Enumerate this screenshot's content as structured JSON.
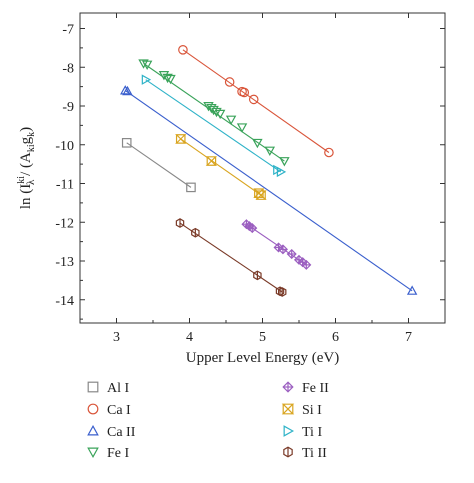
{
  "chart_data": {
    "type": "scatter",
    "xlabel": "Upper Level Energy (eV)",
    "ylabel": "ln (I^ki_λ / (A_ki g_k))",
    "ylabel_parts": {
      "prefix": "ln (I",
      "sup": "ki",
      "sub_lambda": "λ",
      "mid": " / (A",
      "sub_ki": "ki",
      "g": "g",
      "sub_k": "k",
      "suffix": ")"
    },
    "xlim": [
      2.5,
      7.5
    ],
    "ylim": [
      -14.6,
      -6.6
    ],
    "xticks": [
      3,
      4,
      5,
      6,
      7
    ],
    "xtick_labels": [
      "3",
      "4",
      "5",
      "6",
      "7"
    ],
    "yticks": [
      -7,
      -8,
      -9,
      -10,
      -11,
      -12,
      -13,
      -14
    ],
    "ytick_labels": [
      "-7",
      "-8",
      "-9",
      "-10",
      "-11",
      "-12",
      "-13",
      "-14"
    ],
    "grid": false,
    "legend_placement": "bottom",
    "series": [
      {
        "name": "Al I",
        "marker": "square",
        "color": "#888888",
        "points": [
          [
            3.14,
            -9.95
          ],
          [
            4.02,
            -11.1
          ]
        ],
        "fit": [
          [
            3.14,
            -9.95
          ],
          [
            4.02,
            -11.1
          ]
        ]
      },
      {
        "name": "Ca I",
        "marker": "circle",
        "color": "#d9553a",
        "points": [
          [
            3.91,
            -7.55
          ],
          [
            4.55,
            -8.38
          ],
          [
            4.72,
            -8.63
          ],
          [
            4.75,
            -8.65
          ],
          [
            4.88,
            -8.83
          ],
          [
            5.91,
            -10.2
          ]
        ],
        "fit": [
          [
            3.91,
            -7.55
          ],
          [
            5.91,
            -10.2
          ]
        ]
      },
      {
        "name": "Ca II",
        "marker": "triangle-up",
        "color": "#3a5fcd",
        "points": [
          [
            3.12,
            -8.6
          ],
          [
            3.15,
            -8.62
          ],
          [
            7.05,
            -13.77
          ]
        ],
        "fit": [
          [
            3.12,
            -8.6
          ],
          [
            7.05,
            -13.77
          ]
        ]
      },
      {
        "name": "Fe I",
        "marker": "triangle-down",
        "color": "#3aa35a",
        "points": [
          [
            3.37,
            -7.9
          ],
          [
            3.42,
            -7.93
          ],
          [
            3.65,
            -8.2
          ],
          [
            3.7,
            -8.27
          ],
          [
            3.74,
            -8.3
          ],
          [
            4.26,
            -9.0
          ],
          [
            4.3,
            -9.05
          ],
          [
            4.33,
            -9.1
          ],
          [
            4.37,
            -9.15
          ],
          [
            4.42,
            -9.2
          ],
          [
            4.57,
            -9.35
          ],
          [
            4.72,
            -9.55
          ],
          [
            4.93,
            -9.95
          ],
          [
            5.1,
            -10.15
          ],
          [
            5.3,
            -10.42
          ]
        ],
        "fit": [
          [
            3.37,
            -7.9
          ],
          [
            5.3,
            -10.42
          ]
        ]
      },
      {
        "name": "Fe II",
        "marker": "diamond",
        "color": "#9b5fc0",
        "points": [
          [
            4.78,
            -12.05
          ],
          [
            4.82,
            -12.1
          ],
          [
            4.86,
            -12.15
          ],
          [
            5.22,
            -12.65
          ],
          [
            5.28,
            -12.7
          ],
          [
            5.4,
            -12.82
          ],
          [
            5.5,
            -12.97
          ],
          [
            5.55,
            -13.03
          ],
          [
            5.6,
            -13.1
          ]
        ],
        "fit": [
          [
            4.78,
            -12.05
          ],
          [
            5.6,
            -13.1
          ]
        ]
      },
      {
        "name": "Si I",
        "marker": "bowtie",
        "color": "#d9a520",
        "points": [
          [
            3.88,
            -9.85
          ],
          [
            4.3,
            -10.42
          ],
          [
            4.95,
            -11.25
          ],
          [
            4.98,
            -11.3
          ]
        ],
        "fit": [
          [
            3.88,
            -9.85
          ],
          [
            4.98,
            -11.3
          ]
        ]
      },
      {
        "name": "Ti I",
        "marker": "triangle-right",
        "color": "#2fb3c8",
        "points": [
          [
            3.4,
            -8.32
          ],
          [
            5.2,
            -10.65
          ],
          [
            5.25,
            -10.7
          ]
        ],
        "fit": [
          [
            3.4,
            -8.32
          ],
          [
            5.25,
            -10.7
          ]
        ]
      },
      {
        "name": "Ti II",
        "marker": "hexagon",
        "color": "#7a3a28",
        "points": [
          [
            3.87,
            -12.02
          ],
          [
            4.08,
            -12.27
          ],
          [
            4.93,
            -13.37
          ],
          [
            5.24,
            -13.78
          ],
          [
            5.27,
            -13.8
          ]
        ],
        "fit": [
          [
            3.87,
            -12.02
          ],
          [
            5.27,
            -13.8
          ]
        ]
      }
    ]
  }
}
